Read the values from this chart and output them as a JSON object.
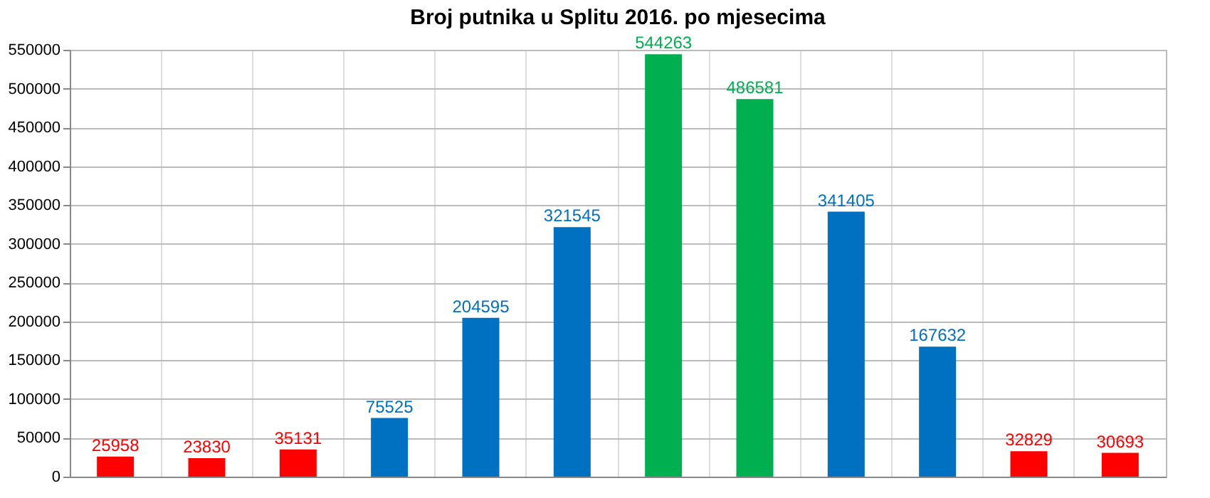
{
  "chart_data": {
    "type": "bar",
    "title": "Broj putnika u Splitu 2016. po mjesecima",
    "categories": [
      null,
      null,
      null,
      null,
      null,
      null,
      null,
      null,
      null,
      null,
      null,
      null
    ],
    "values": [
      25958,
      23830,
      35131,
      75525,
      204595,
      321545,
      544263,
      486581,
      341405,
      167632,
      32829,
      30693
    ],
    "colors": [
      "#ff0000",
      "#ff0000",
      "#ff0000",
      "#0070c0",
      "#0070c0",
      "#0070c0",
      "#00b050",
      "#00b050",
      "#0070c0",
      "#0070c0",
      "#ff0000",
      "#ff0000"
    ],
    "ylim": [
      0,
      550000
    ],
    "yticks": [
      0,
      50000,
      100000,
      150000,
      200000,
      250000,
      300000,
      350000,
      400000,
      450000,
      500000,
      550000
    ],
    "grid": true,
    "data_labels": true,
    "tick_labels": "y"
  }
}
